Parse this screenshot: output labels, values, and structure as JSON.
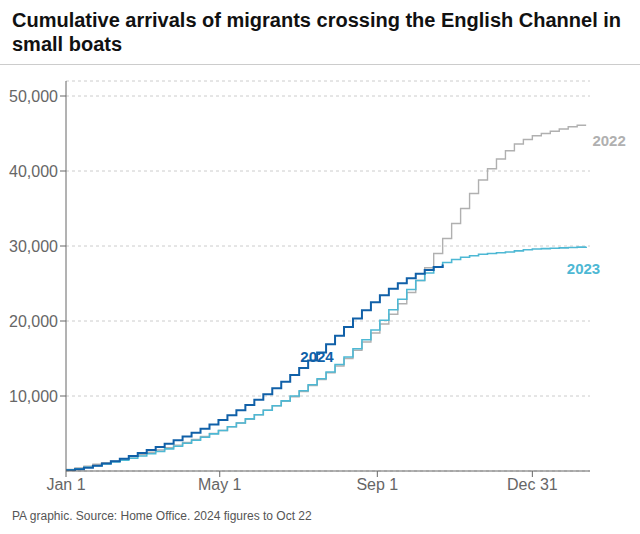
{
  "chart_data": {
    "type": "step",
    "title": "Cumulative arrivals of migrants crossing the English Channel in small boats",
    "caption": "PA graphic. Source: Home Office. 2024 figures to Oct 22",
    "x": [
      1,
      8,
      15,
      22,
      29,
      36,
      43,
      50,
      57,
      64,
      71,
      78,
      85,
      92,
      99,
      106,
      113,
      120,
      127,
      134,
      141,
      148,
      155,
      162,
      169,
      176,
      183,
      190,
      197,
      204,
      211,
      218,
      225,
      232,
      239,
      246,
      253,
      260,
      267,
      274,
      281,
      288,
      295,
      302,
      309,
      316,
      323,
      330,
      337,
      344,
      351,
      358,
      365,
      372,
      379,
      386,
      393,
      400,
      407
    ],
    "series": [
      {
        "name": "2022",
        "color": "#b0b0b0",
        "values": [
          200,
          400,
          650,
          900,
          1100,
          1350,
          1600,
          1900,
          2200,
          2500,
          2800,
          3100,
          3450,
          3800,
          4200,
          4600,
          5000,
          5400,
          5900,
          6400,
          6900,
          7500,
          8100,
          8700,
          9300,
          9900,
          10600,
          11400,
          12200,
          13100,
          14000,
          15000,
          16100,
          17200,
          18400,
          19600,
          20900,
          22300,
          23800,
          25400,
          27100,
          29000,
          31000,
          33000,
          35000,
          37000,
          38800,
          40300,
          41600,
          42700,
          43600,
          44200,
          44700,
          45000,
          45300,
          45600,
          45900,
          46100,
          46100
        ]
      },
      {
        "name": "2023",
        "color": "#4db8d4",
        "values": [
          150,
          300,
          500,
          700,
          950,
          1200,
          1450,
          1700,
          2000,
          2300,
          2600,
          2950,
          3300,
          3700,
          4100,
          4500,
          4950,
          5400,
          5900,
          6400,
          6950,
          7500,
          8100,
          8700,
          9350,
          10000,
          10700,
          11500,
          12300,
          13200,
          14200,
          15200,
          16300,
          17500,
          18800,
          20100,
          21500,
          22900,
          24200,
          25400,
          26400,
          27200,
          27800,
          28200,
          28500,
          28700,
          28900,
          29000,
          29100,
          29200,
          29350,
          29500,
          29600,
          29650,
          29700,
          29750,
          29800,
          29850,
          29900
        ]
      },
      {
        "name": "2024",
        "color": "#1060a8",
        "values": [
          100,
          250,
          450,
          700,
          1000,
          1300,
          1650,
          2000,
          2400,
          2800,
          3200,
          3650,
          4100,
          4600,
          5100,
          5650,
          6200,
          6800,
          7450,
          8100,
          8800,
          9500,
          10250,
          11050,
          11900,
          12800,
          13750,
          14750,
          15800,
          16900,
          18050,
          19200,
          20350,
          21450,
          22500,
          23450,
          24300,
          25050,
          25700,
          26300,
          26800,
          27200,
          27550,
          null,
          null,
          null,
          null,
          null,
          null,
          null,
          null,
          null,
          null,
          null,
          null,
          null,
          null,
          null,
          null
        ]
      }
    ],
    "annotations": [
      {
        "text": "2022",
        "x": 408,
        "y": 44000,
        "color": "#b0b0b0"
      },
      {
        "text": "2023",
        "x": 388,
        "y": 27000,
        "color": "#4db8d4"
      },
      {
        "text": "2024",
        "x": 180,
        "y": 15200,
        "color": "#1060a8"
      }
    ],
    "xlim": [
      1,
      410
    ],
    "xticks": [
      {
        "value": 1,
        "label": "Jan 1"
      },
      {
        "value": 121,
        "label": "May 1"
      },
      {
        "value": 244,
        "label": "Sep 1"
      },
      {
        "value": 365,
        "label": "Dec 31"
      }
    ],
    "ylim": [
      0,
      52000
    ],
    "yticks": [
      {
        "value": 10000,
        "label": "10,000"
      },
      {
        "value": 20000,
        "label": "20,000"
      },
      {
        "value": 30000,
        "label": "30,000"
      },
      {
        "value": 40000,
        "label": "40,000"
      },
      {
        "value": 50000,
        "label": "50,000"
      }
    ],
    "grid": true
  }
}
